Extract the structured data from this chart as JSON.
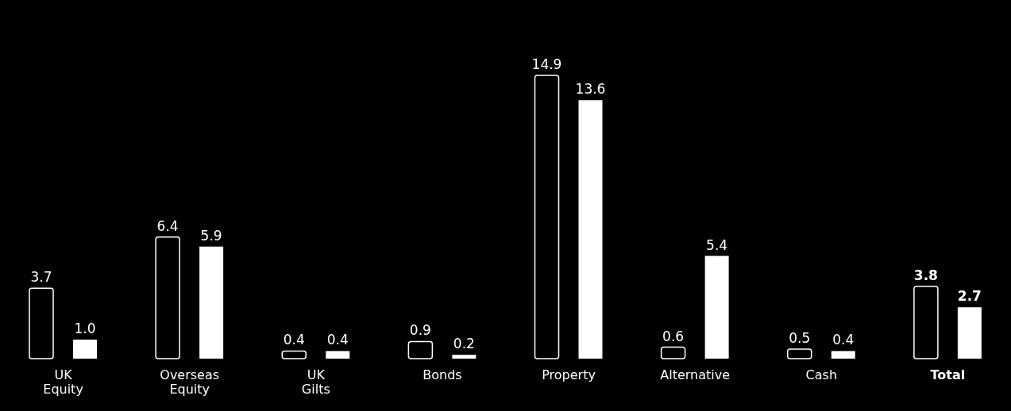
{
  "chart_data": {
    "type": "bar",
    "categories": [
      "UK Equity",
      "Overseas Equity",
      "UK Gilts",
      "Bonds",
      "Property",
      "Alternative",
      "Cash",
      "Total"
    ],
    "series": [
      {
        "color": "#000000",
        "values": [
          3.7,
          6.4,
          0.4,
          0.9,
          14.9,
          0.6,
          0.5,
          3.8
        ],
        "value_labels": [
          "3.7",
          "6.4",
          "0.4",
          "0.9",
          "14.9",
          "0.6",
          "0.5",
          "3.8"
        ]
      },
      {
        "color": "#ffffff",
        "values": [
          1.0,
          5.9,
          0.4,
          0.2,
          13.6,
          5.4,
          0.4,
          2.7
        ],
        "value_labels": [
          "1.0",
          "5.9",
          "0.4",
          "0.2",
          "13.6",
          "5.4",
          "0.4",
          "2.7"
        ]
      }
    ],
    "grid": false,
    "legend": false
  }
}
